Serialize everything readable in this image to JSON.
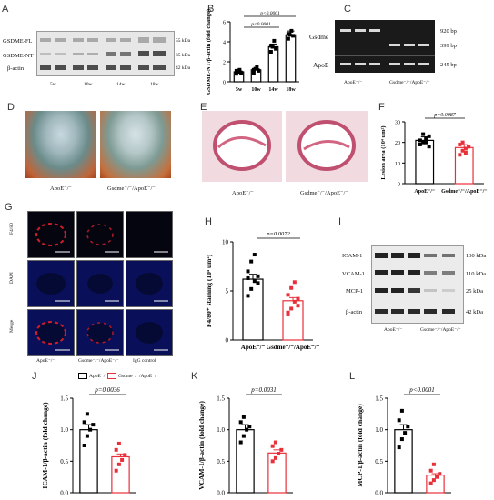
{
  "panels": {
    "A": "A",
    "B": "B",
    "C": "C",
    "D": "D",
    "E": "E",
    "F": "F",
    "G": "G",
    "H": "H",
    "I": "I",
    "J": "J",
    "K": "K",
    "L": "L"
  },
  "panelA": {
    "rows": [
      "GSDME-FL",
      "GSDME-NT",
      "β-actin"
    ],
    "kda": [
      "55 kDa",
      "35 kDa",
      "42 kDa"
    ],
    "lanes": [
      "5w",
      "10w",
      "14w",
      "18w"
    ]
  },
  "panelB": {
    "ylabel": "GSDME-NT/β-actin (fold change)",
    "p1": "p<0.0001",
    "p2": "p<0.0001"
  },
  "panelC": {
    "rows": [
      "Gsdme",
      "ApoE"
    ],
    "bp": [
      "920 bp",
      "399 bp",
      "245 bp"
    ],
    "groups": [
      "ApoE⁻/⁻",
      "Gsdme⁻/⁻/ApoE⁻/⁻"
    ]
  },
  "panelD": {
    "labels": [
      "ApoE⁻/⁻",
      "Gsdme⁻/⁻/ApoE⁻/⁻"
    ]
  },
  "panelE": {
    "labels": [
      "ApoE⁻/⁻",
      "Gsdme⁻/⁻/ApoE⁻/⁻"
    ]
  },
  "panelF": {
    "ylabel": "Lesion area (10⁴ um²)",
    "p": "p=0.0087",
    "xlabels": [
      "ApoE⁻/⁻",
      "Gsdme⁻/⁻/ApoE⁻/⁻"
    ]
  },
  "panelG": {
    "rows": [
      "F4/80",
      "DAPI",
      "Merge"
    ],
    "cols": [
      "ApoE⁻/⁻",
      "Gsdme⁻/⁻/ApoE⁻/⁻",
      "IgG control"
    ]
  },
  "panelH": {
    "ylabel": "F4/80⁺ staining (10⁴ um²)",
    "p": "p=0.0072",
    "xlabels": [
      "ApoE⁻/⁻",
      "Gsdme⁻/⁻/ApoE⁻/⁻"
    ]
  },
  "panelI": {
    "rows": [
      "ICAM-1",
      "VCAM-1",
      "MCP-1",
      "β-actin"
    ],
    "kda": [
      "130 kDa",
      "110 kDa",
      "25 kDa",
      "42 kDa"
    ],
    "groups": [
      "ApoE⁻/⁻",
      "Gsdme⁻/⁻/ApoE⁻/⁻"
    ]
  },
  "panelJ": {
    "ylabel": "ICAM-1/β-actin (fold change)",
    "p": "p=0.0036",
    "legend": [
      "ApoE⁻/⁻",
      "Gsdme⁻/⁻/ApoE⁻/⁻"
    ]
  },
  "panelK": {
    "ylabel": "VCAM-1/β-actin (fold change)",
    "p": "p=0.0031"
  },
  "panelL": {
    "ylabel": "MCP-1/β-actin (fold change)",
    "p": "p<0.0001"
  },
  "colors": {
    "apoe": "#000000",
    "gsdme": "#e8303a"
  },
  "chart_data": [
    {
      "panel": "B",
      "type": "bar",
      "categories": [
        "5w",
        "10w",
        "14w",
        "18w"
      ],
      "values": [
        1.0,
        1.2,
        3.5,
        4.7
      ],
      "ylim": [
        0,
        6
      ],
      "yticks": [
        0,
        2,
        4,
        6
      ],
      "ylabel": "GSDME-NT/β-actin (fold change)",
      "points": [
        [
          0.8,
          1.0,
          1.2,
          0.9,
          1.1
        ],
        [
          0.9,
          1.3,
          1.5,
          1.1,
          1.2
        ],
        [
          3.0,
          3.5,
          4.1,
          3.3,
          3.6
        ],
        [
          4.3,
          4.7,
          5.1,
          4.6,
          4.8
        ]
      ]
    },
    {
      "panel": "F",
      "type": "bar",
      "categories": [
        "ApoE⁻/⁻",
        "Gsdme⁻/⁻/ApoE⁻/⁻"
      ],
      "values": [
        21,
        17.5
      ],
      "ylim": [
        0,
        30
      ],
      "yticks": [
        0,
        10,
        20,
        30
      ],
      "ylabel": "Lesion area (10⁴ um²)",
      "points": [
        [
          19,
          20,
          22,
          23,
          21,
          24,
          20,
          18
        ],
        [
          14,
          16,
          17,
          18,
          19,
          20,
          15,
          18
        ]
      ]
    },
    {
      "panel": "H",
      "type": "bar",
      "categories": [
        "ApoE⁻/⁻",
        "Gsdme⁻/⁻/ApoE⁻/⁻"
      ],
      "values": [
        6.2,
        4.0
      ],
      "ylim": [
        0,
        10
      ],
      "yticks": [
        0,
        5,
        10
      ],
      "ylabel": "F4/80⁺ staining (10⁴ um²)",
      "points": [
        [
          4.5,
          5.2,
          6.0,
          6.5,
          7.0,
          8.0,
          8.7,
          5.8,
          6.3
        ],
        [
          2.8,
          3.2,
          3.9,
          4.2,
          4.6,
          5.3,
          5.9,
          3.5,
          2.6
        ]
      ]
    },
    {
      "panel": "J",
      "type": "bar",
      "categories": [
        "ApoE⁻/⁻",
        "Gsdme⁻/⁻/ApoE⁻/⁻"
      ],
      "values": [
        1.0,
        0.57
      ],
      "ylim": [
        0,
        1.5
      ],
      "yticks": [
        0.0,
        0.5,
        1.0,
        1.5
      ],
      "ylabel": "ICAM-1/β-actin (fold change)",
      "points": [
        [
          0.75,
          0.9,
          1.0,
          1.08,
          1.12,
          1.25
        ],
        [
          0.35,
          0.45,
          0.52,
          0.6,
          0.68,
          0.78
        ]
      ]
    },
    {
      "panel": "K",
      "type": "bar",
      "categories": [
        "ApoE⁻/⁻",
        "Gsdme⁻/⁻/ApoE⁻/⁻"
      ],
      "values": [
        1.0,
        0.63
      ],
      "ylim": [
        0,
        1.5
      ],
      "yticks": [
        0.0,
        0.5,
        1.0,
        1.5
      ],
      "ylabel": "VCAM-1/β-actin (fold change)",
      "points": [
        [
          0.8,
          0.9,
          1.0,
          1.05,
          1.12,
          1.2
        ],
        [
          0.5,
          0.55,
          0.62,
          0.68,
          0.74,
          0.8
        ]
      ]
    },
    {
      "panel": "L",
      "type": "bar",
      "categories": [
        "ApoE⁻/⁻",
        "Gsdme⁻/⁻/ApoE⁻/⁻"
      ],
      "values": [
        1.0,
        0.28
      ],
      "ylim": [
        0,
        1.5
      ],
      "yticks": [
        0.0,
        0.5,
        1.0,
        1.5
      ],
      "ylabel": "MCP-1/β-actin (fold change)",
      "points": [
        [
          0.72,
          0.85,
          0.95,
          1.05,
          1.15,
          1.3
        ],
        [
          0.15,
          0.2,
          0.25,
          0.3,
          0.35,
          0.45
        ]
      ]
    }
  ]
}
